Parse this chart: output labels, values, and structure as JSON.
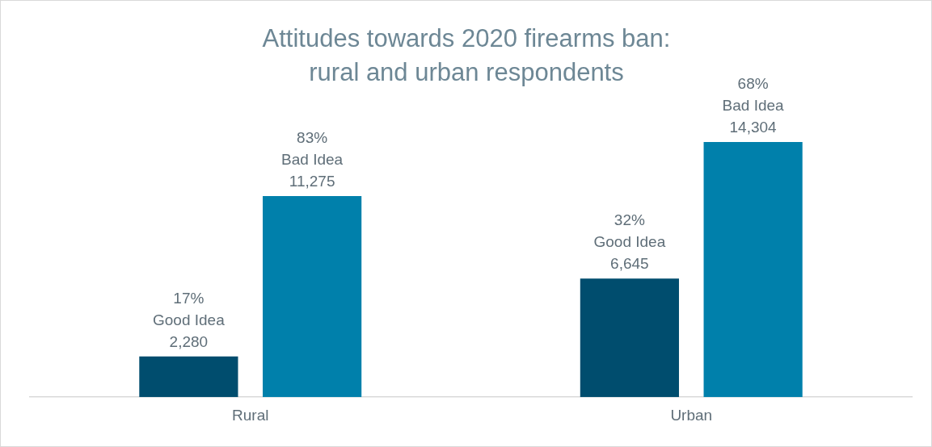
{
  "chart_data": {
    "type": "bar",
    "title": "Attitudes towards 2020 firearms ban: rural and urban respondents",
    "categories": [
      "Rural",
      "Urban"
    ],
    "series": [
      {
        "color": "#004d6e",
        "values": [
          2280,
          6645
        ],
        "value_labels": [
          "17%\nGood Idea\n2,280",
          "32%\nGood Idea\n6,645"
        ]
      },
      {
        "color": "#0080ab",
        "values": [
          11275,
          14304
        ],
        "value_labels": [
          "83%\nBad Idea\n11,275",
          "68%\nBad Idea\n14,304"
        ]
      }
    ]
  }
}
